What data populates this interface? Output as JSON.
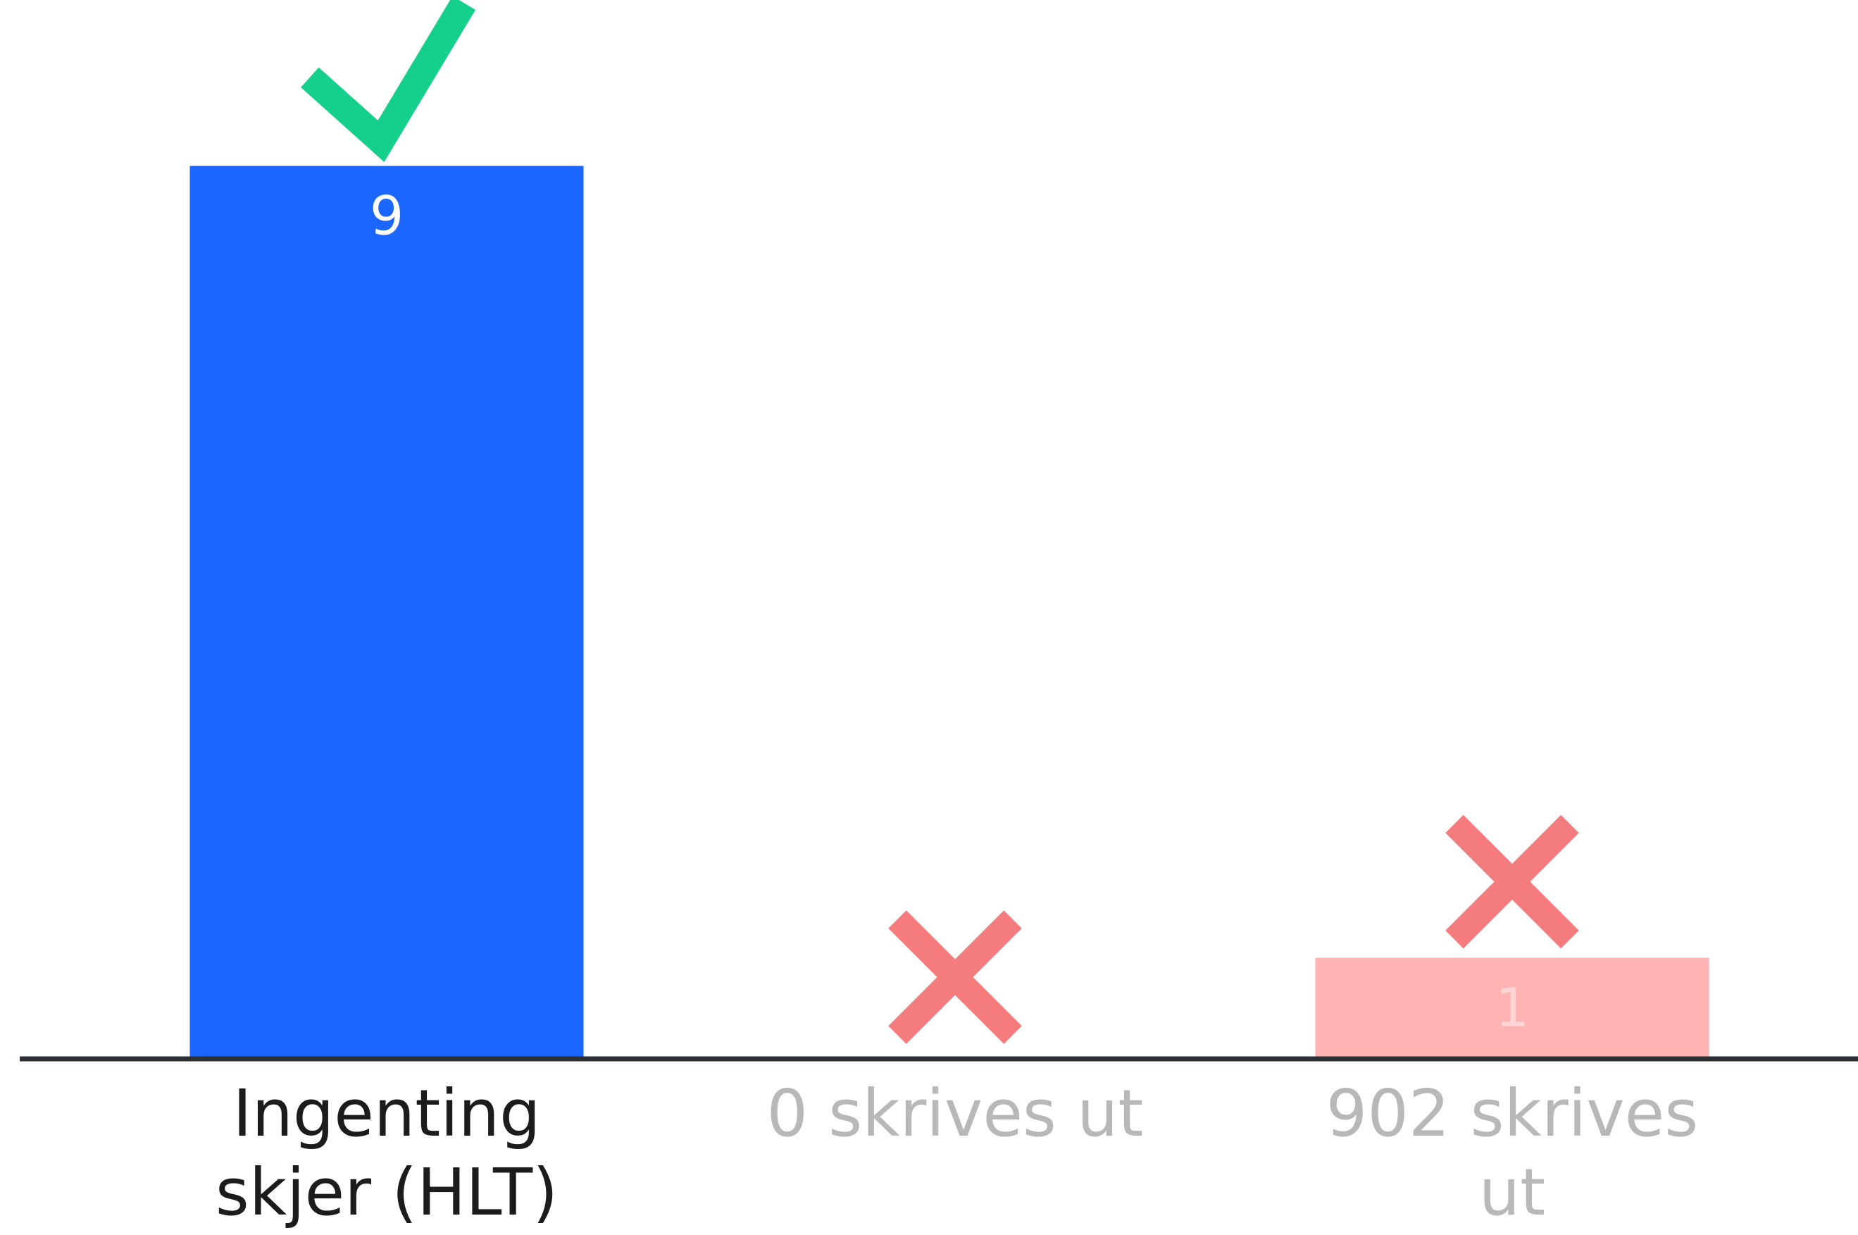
{
  "chart_data": {
    "type": "bar",
    "categories": [
      "Ingenting skjer (HLT)",
      "0 skrives ut",
      "902 skrives ut"
    ],
    "category_lines": [
      [
        "Ingenting",
        "skjer (HLT)"
      ],
      [
        "0 skrives ut"
      ],
      [
        "902 skrives",
        "ut"
      ]
    ],
    "values": [
      9,
      0,
      1
    ],
    "value_labels": [
      "9",
      "",
      "1"
    ],
    "ylim": [
      0,
      10
    ],
    "correct": [
      true,
      false,
      false
    ],
    "markers": [
      "check-icon",
      "cross-icon",
      "cross-icon"
    ],
    "title": "",
    "xlabel": "",
    "ylabel": "",
    "grid": false,
    "colors": {
      "correct_bar": "#1A66FF",
      "wrong_bar": "#FFB3B3",
      "check": "#14D08A",
      "cross": "#F47C7C",
      "correct_label": "#1C1C1C",
      "wrong_label": "#B8B8B8",
      "correct_value_label": "#FFFFFF",
      "wrong_value_label": "#FFD6D6",
      "baseline": "#2B2F36"
    }
  }
}
